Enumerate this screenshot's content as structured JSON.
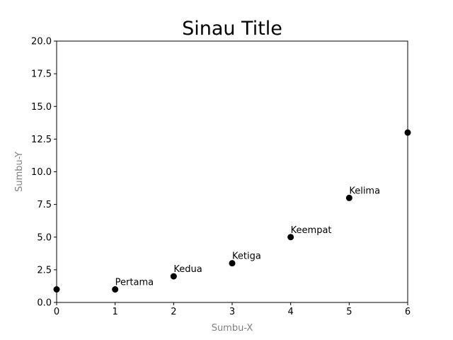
{
  "chart_data": {
    "type": "scatter",
    "title": "Sinau Title",
    "xlabel": "Sumbu-X",
    "ylabel": "Sumbu-Y",
    "xlim": [
      0,
      6
    ],
    "ylim": [
      0,
      20
    ],
    "xticks": [
      "0",
      "1",
      "2",
      "3",
      "4",
      "5",
      "6"
    ],
    "yticks": [
      "0.0",
      "2.5",
      "5.0",
      "7.5",
      "10.0",
      "12.5",
      "15.0",
      "17.5",
      "20.0"
    ],
    "x": [
      0,
      1,
      2,
      3,
      4,
      5,
      6
    ],
    "y": [
      1,
      1,
      2,
      3,
      5,
      8,
      13
    ],
    "point_labels": [
      "",
      "Pertama",
      "Kedua",
      "Ketiga",
      "Keempat",
      "Kelima",
      ""
    ],
    "grid": false,
    "colors": {
      "marker": "#000000",
      "axis_label": "#808080",
      "frame": "#000000"
    }
  }
}
